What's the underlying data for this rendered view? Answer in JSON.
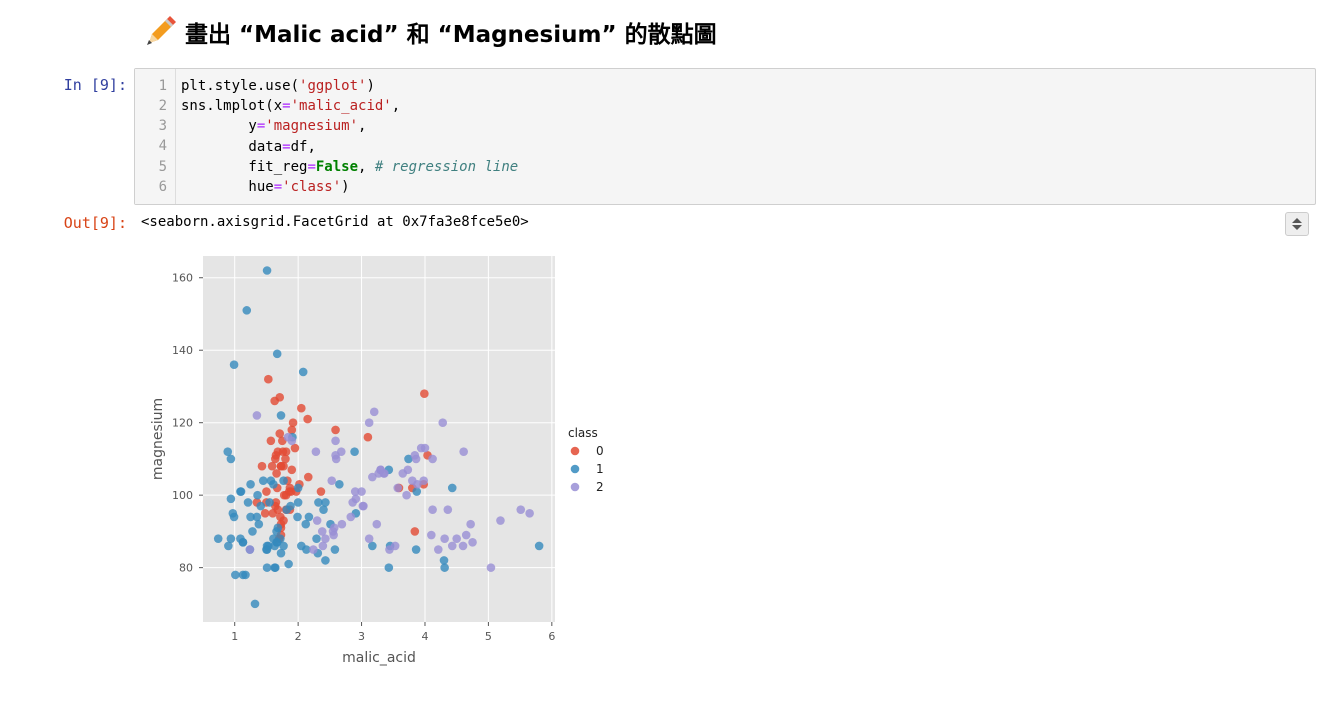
{
  "heading": {
    "icon": "pencil-icon",
    "text": "畫出 “Malic acid” 和 “Magnesium” 的散點圖"
  },
  "input_cell": {
    "prompt": "In [9]:",
    "line_numbers": [
      "1",
      "2",
      "3",
      "4",
      "5",
      "6"
    ],
    "code": {
      "l1_a": "plt.style.use(",
      "l1_str": "'ggplot'",
      "l1_b": ")",
      "l2_a": "sns.lmplot(x",
      "l2_eq": "=",
      "l2_str": "'malic_acid'",
      "l2_b": ",",
      "l3_a": "        y",
      "l3_eq": "=",
      "l3_str": "'magnesium'",
      "l3_b": ",",
      "l4_a": "        data",
      "l4_eq": "=",
      "l4_b": "df,",
      "l5_a": "        fit_reg",
      "l5_eq": "=",
      "l5_kw": "False",
      "l5_b": ", ",
      "l5_cm": "# regression line",
      "l6_a": "        hue",
      "l6_eq": "=",
      "l6_str": "'class'",
      "l6_b": ")"
    }
  },
  "output_cell": {
    "prompt": "Out[9]:",
    "text": "<seaborn.axisgrid.FacetGrid at 0x7fa3e8fce5e0>"
  },
  "chart_data": {
    "type": "scatter",
    "title": "",
    "xlabel": "malic_acid",
    "ylabel": "magnesium",
    "xlim": [
      0.5,
      6.05
    ],
    "ylim": [
      65,
      166
    ],
    "xticks": [
      1,
      2,
      3,
      4,
      5,
      6
    ],
    "yticks": [
      80,
      100,
      120,
      140,
      160
    ],
    "grid": true,
    "legend": {
      "title": "class",
      "placement": "right",
      "labels": [
        "0",
        "1",
        "2"
      ]
    },
    "series": [
      {
        "name": "0",
        "color": "#e24a33",
        "points": [
          [
            1.71,
            127
          ],
          [
            1.78,
            100
          ],
          [
            2.36,
            101
          ],
          [
            1.95,
            113
          ],
          [
            2.59,
            118
          ],
          [
            1.76,
            112
          ],
          [
            1.87,
            96
          ],
          [
            2.15,
            121
          ],
          [
            1.64,
            97
          ],
          [
            1.35,
            98
          ],
          [
            2.16,
            105
          ],
          [
            1.48,
            95
          ],
          [
            1.73,
            89
          ],
          [
            1.73,
            91
          ],
          [
            1.87,
            102
          ],
          [
            1.81,
            112
          ],
          [
            1.92,
            120
          ],
          [
            1.57,
            115
          ],
          [
            1.59,
            108
          ],
          [
            3.1,
            116
          ],
          [
            1.63,
            126
          ],
          [
            3.8,
            102
          ],
          [
            1.86,
            101
          ],
          [
            1.6,
            95
          ],
          [
            1.81,
            96
          ],
          [
            2.05,
            124
          ],
          [
            1.77,
            93
          ],
          [
            1.72,
            94
          ],
          [
            1.9,
            107
          ],
          [
            1.68,
            96
          ],
          [
            1.5,
            101
          ],
          [
            1.66,
            106
          ],
          [
            1.83,
            104
          ],
          [
            1.53,
            132
          ],
          [
            1.8,
            110
          ],
          [
            1.81,
            100
          ],
          [
            1.64,
            110
          ],
          [
            1.65,
            98
          ],
          [
            1.5,
            98
          ],
          [
            3.99,
            128
          ],
          [
            1.71,
            117
          ],
          [
            3.84,
            90
          ],
          [
            1.89,
            101
          ],
          [
            3.98,
            103
          ],
          [
            1.77,
            108
          ],
          [
            4.04,
            111
          ],
          [
            3.59,
            102
          ],
          [
            1.68,
            112
          ],
          [
            2.02,
            103
          ],
          [
            1.73,
            108
          ],
          [
            1.73,
            92
          ],
          [
            1.65,
            111
          ],
          [
            1.75,
            115
          ],
          [
            1.9,
            118
          ],
          [
            1.67,
            102
          ],
          [
            1.73,
            108
          ],
          [
            1.7,
            88
          ],
          [
            1.97,
            101
          ],
          [
            1.43,
            108
          ]
        ]
      },
      {
        "name": "1",
        "color": "#348abd",
        "points": [
          [
            0.94,
            88
          ],
          [
            1.1,
            101
          ],
          [
            1.36,
            100
          ],
          [
            1.25,
            94
          ],
          [
            1.13,
            87
          ],
          [
            1.45,
            104
          ],
          [
            1.21,
            98
          ],
          [
            1.01,
            78
          ],
          [
            1.17,
            78
          ],
          [
            0.94,
            110
          ],
          [
            1.19,
            151
          ],
          [
            1.61,
            103
          ],
          [
            1.51,
            86
          ],
          [
            1.66,
            87
          ],
          [
            1.67,
            139
          ],
          [
            1.09,
            101
          ],
          [
            1.88,
            97
          ],
          [
            3.17,
            86
          ],
          [
            0.89,
            112
          ],
          [
            0.9,
            86
          ],
          [
            2.89,
            112
          ],
          [
            2.05,
            86
          ],
          [
            0.99,
            136
          ],
          [
            1.73,
            122
          ],
          [
            1.28,
            90
          ],
          [
            1.51,
            85
          ],
          [
            1.51,
            80
          ],
          [
            1.66,
            90
          ],
          [
            1.55,
            98
          ],
          [
            0.74,
            88
          ],
          [
            1.64,
            80
          ],
          [
            1.32,
            70
          ],
          [
            1.63,
            86
          ],
          [
            1.51,
            162
          ],
          [
            2.08,
            134
          ],
          [
            2.58,
            85
          ],
          [
            1.72,
            88
          ],
          [
            2.13,
            85
          ],
          [
            1.63,
            80
          ],
          [
            1.67,
            87
          ],
          [
            1.73,
            84
          ],
          [
            1.68,
            91
          ],
          [
            2.12,
            92
          ],
          [
            1.24,
            85
          ],
          [
            1.57,
            104
          ],
          [
            1.61,
            88
          ],
          [
            2.31,
            84
          ],
          [
            1.5,
            85
          ],
          [
            1.77,
            86
          ],
          [
            1.09,
            88
          ],
          [
            3.87,
            101
          ],
          [
            1.13,
            87
          ],
          [
            1.41,
            97
          ],
          [
            1.99,
            94
          ],
          [
            3.43,
            80
          ],
          [
            4.43,
            102
          ],
          [
            3.74,
            110
          ],
          [
            2.17,
            94
          ],
          [
            0.94,
            99
          ],
          [
            3.43,
            107
          ],
          [
            1.25,
            103
          ],
          [
            2.43,
            82
          ],
          [
            1.85,
            81
          ],
          [
            5.8,
            86
          ],
          [
            2.4,
            96
          ],
          [
            4.31,
            80
          ],
          [
            4.3,
            82
          ],
          [
            1.35,
            94
          ],
          [
            2.32,
            98
          ],
          [
            2.0,
            98
          ],
          [
            2.0,
            102
          ],
          [
            1.53,
            86
          ],
          [
            2.65,
            103
          ],
          [
            1.91,
            116
          ],
          [
            3.86,
            85
          ],
          [
            2.29,
            88
          ],
          [
            2.43,
            98
          ],
          [
            1.13,
            78
          ],
          [
            1.82,
            96
          ],
          [
            1.38,
            92
          ],
          [
            0.97,
            95
          ],
          [
            1.77,
            104
          ],
          [
            0.99,
            94
          ],
          [
            2.51,
            92
          ],
          [
            2.91,
            95
          ],
          [
            3.45,
            86
          ]
        ]
      },
      {
        "name": "2",
        "color": "#988ed5",
        "points": [
          [
            1.24,
            85
          ],
          [
            1.35,
            122
          ],
          [
            2.53,
            104
          ],
          [
            1.9,
            115
          ],
          [
            2.43,
            88
          ],
          [
            2.55,
            90
          ],
          [
            2.86,
            98
          ],
          [
            3.57,
            102
          ],
          [
            2.24,
            85
          ],
          [
            3.03,
            97
          ],
          [
            3.65,
            106
          ],
          [
            3.84,
            111
          ],
          [
            3.88,
            103
          ],
          [
            4.12,
            110
          ],
          [
            3.24,
            92
          ],
          [
            3.36,
            106
          ],
          [
            4.36,
            96
          ],
          [
            4.28,
            120
          ],
          [
            2.56,
            89
          ],
          [
            2.6,
            110
          ],
          [
            3.17,
            105
          ],
          [
            3.8,
            104
          ],
          [
            4.6,
            86
          ],
          [
            5.04,
            80
          ],
          [
            2.68,
            112
          ],
          [
            3.27,
            106
          ],
          [
            3.44,
            85
          ],
          [
            4.65,
            89
          ],
          [
            4.21,
            85
          ],
          [
            5.65,
            95
          ],
          [
            5.19,
            93
          ],
          [
            5.51,
            96
          ],
          [
            4.72,
            92
          ],
          [
            3.98,
            104
          ],
          [
            4.31,
            88
          ],
          [
            2.39,
            86
          ],
          [
            3.3,
            107
          ],
          [
            3.12,
            120
          ],
          [
            2.3,
            93
          ],
          [
            2.83,
            94
          ],
          [
            2.28,
            112
          ],
          [
            4.61,
            112
          ],
          [
            3.73,
            107
          ],
          [
            3.86,
            110
          ],
          [
            4.0,
            113
          ],
          [
            2.59,
            115
          ],
          [
            4.1,
            89
          ],
          [
            4.5,
            88
          ],
          [
            2.91,
            99
          ],
          [
            3.02,
            97
          ],
          [
            3.2,
            123
          ],
          [
            3.94,
            113
          ],
          [
            1.84,
            116
          ],
          [
            2.9,
            101
          ],
          [
            4.43,
            86
          ],
          [
            3.3,
            107
          ],
          [
            4.12,
            96
          ],
          [
            3.53,
            86
          ],
          [
            2.69,
            92
          ],
          [
            3.35,
            106
          ],
          [
            2.38,
            90
          ],
          [
            3.71,
            100
          ],
          [
            2.59,
            111
          ],
          [
            3.0,
            101
          ],
          [
            4.75,
            87
          ],
          [
            3.12,
            88
          ],
          [
            2.57,
            91
          ]
        ]
      }
    ]
  }
}
